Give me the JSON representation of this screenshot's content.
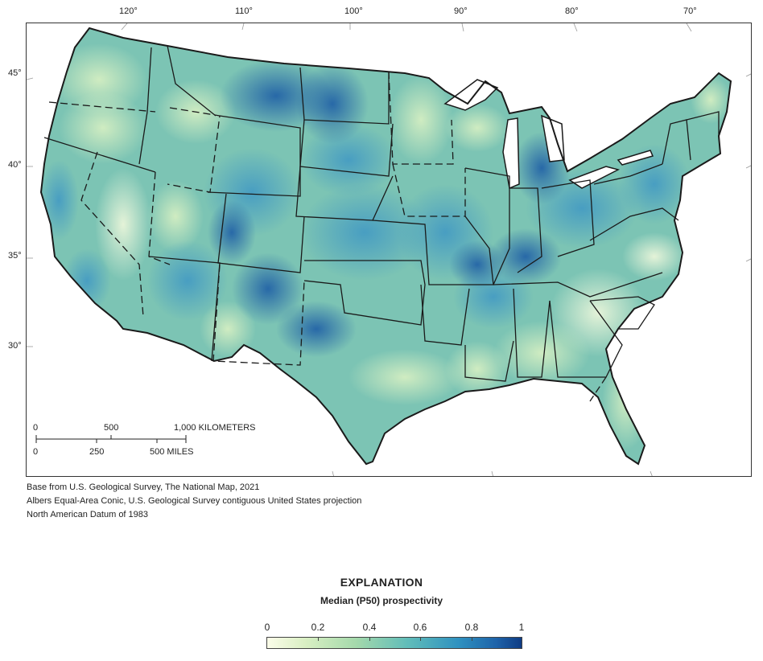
{
  "map": {
    "longitude_labels": [
      "120°",
      "110°",
      "100°",
      "90°",
      "80°",
      "70°"
    ],
    "latitude_labels": [
      "45°",
      "40°",
      "35°",
      "30°"
    ],
    "scale_bar": {
      "km_labels": [
        "0",
        "500",
        "1,000 KILOMETERS"
      ],
      "mile_labels": [
        "0",
        "250",
        "500 MILES"
      ]
    },
    "colors": {
      "border": "#1a1a1a",
      "low": "#fbfde9",
      "mid": "#61bdb9",
      "high": "#0f3c84",
      "water": "#ffffff"
    }
  },
  "credits": [
    "Base from U.S. Geological Survey, The National Map, 2021",
    "Albers Equal-Area Conic, U.S. Geological Survey contiguous United States projection",
    "North American Datum of 1983"
  ],
  "legend": {
    "title": "EXPLANATION",
    "subtitle": "Median (P50) prospectivity",
    "tick_labels": [
      "0",
      "0.2",
      "0.4",
      "0.6",
      "0.8",
      "1"
    ]
  }
}
